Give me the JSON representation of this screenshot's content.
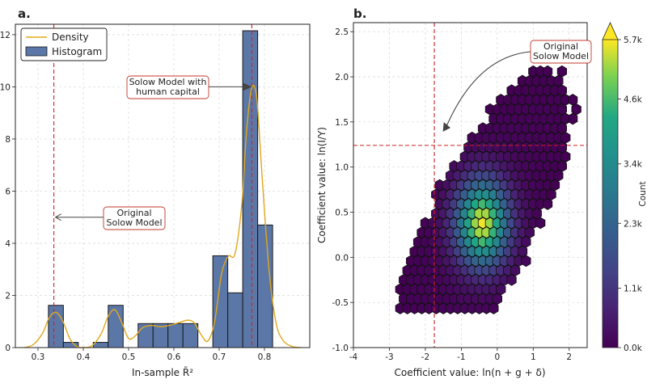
{
  "chart_data": [
    {
      "type": "bar",
      "panel_label": "a.",
      "xlabel": "In-sample R̄²",
      "ylabel": "",
      "xlim": [
        0.25,
        0.9
      ],
      "ylim": [
        0,
        12.4
      ],
      "xticks": [
        "0.3",
        "0.4",
        "0.5",
        "0.6",
        "0.7",
        "0.8"
      ],
      "yticks": [
        "0",
        "2",
        "4",
        "6",
        "8",
        "10",
        "12"
      ],
      "grid": true,
      "legend": {
        "placement": "top-left",
        "entries": [
          "Density",
          "Histogram"
        ]
      },
      "colors": {
        "bar": "#5b77a8",
        "bar_edge": "#1a1a1a",
        "density": "#e0a81d",
        "ref_line": "#cc2222"
      },
      "bins": [
        {
          "x0": 0.323,
          "x1": 0.356,
          "value": 1.62
        },
        {
          "x0": 0.356,
          "x1": 0.389,
          "value": 0.2
        },
        {
          "x0": 0.389,
          "x1": 0.422,
          "value": 0.0
        },
        {
          "x0": 0.422,
          "x1": 0.455,
          "value": 0.2
        },
        {
          "x0": 0.455,
          "x1": 0.488,
          "value": 1.62
        },
        {
          "x0": 0.488,
          "x1": 0.521,
          "value": 0.0
        },
        {
          "x0": 0.521,
          "x1": 0.554,
          "value": 0.92
        },
        {
          "x0": 0.554,
          "x1": 0.587,
          "value": 0.92
        },
        {
          "x0": 0.587,
          "x1": 0.62,
          "value": 0.92
        },
        {
          "x0": 0.62,
          "x1": 0.653,
          "value": 0.92
        },
        {
          "x0": 0.653,
          "x1": 0.686,
          "value": 0.0
        },
        {
          "x0": 0.686,
          "x1": 0.719,
          "value": 3.52
        },
        {
          "x0": 0.719,
          "x1": 0.752,
          "value": 2.1
        },
        {
          "x0": 0.752,
          "x1": 0.785,
          "value": 12.15
        },
        {
          "x0": 0.785,
          "x1": 0.818,
          "value": 4.7
        }
      ],
      "density": {
        "x": [
          0.27,
          0.29,
          0.31,
          0.325,
          0.34,
          0.355,
          0.37,
          0.385,
          0.4,
          0.42,
          0.44,
          0.455,
          0.47,
          0.485,
          0.5,
          0.515,
          0.53,
          0.55,
          0.57,
          0.59,
          0.61,
          0.63,
          0.645,
          0.66,
          0.675,
          0.69,
          0.705,
          0.72,
          0.735,
          0.75,
          0.76,
          0.77,
          0.778,
          0.785,
          0.795,
          0.81,
          0.825,
          0.84,
          0.86,
          0.88
        ],
        "y": [
          0.0,
          0.12,
          0.55,
          1.15,
          1.35,
          1.0,
          0.35,
          0.05,
          0.0,
          0.08,
          0.55,
          1.2,
          1.45,
          0.95,
          0.35,
          0.45,
          0.75,
          0.85,
          0.8,
          0.85,
          0.95,
          1.05,
          0.95,
          0.5,
          0.25,
          1.0,
          2.8,
          3.5,
          3.6,
          5.5,
          8.2,
          9.8,
          10.0,
          9.2,
          6.5,
          3.0,
          1.0,
          0.3,
          0.05,
          0.0
        ]
      },
      "ref_lines": [
        0.335,
        0.772
      ],
      "annotations": [
        {
          "text": [
            "Original",
            "Solow Model"
          ],
          "target": [
            0.335,
            5.0
          ]
        },
        {
          "text": [
            "Solow Model with",
            "human capital"
          ],
          "target": [
            0.772,
            10.0
          ]
        }
      ]
    },
    {
      "type": "heatmap",
      "subtype": "hexbin",
      "panel_label": "b.",
      "xlabel": "Coefficient value: ln(n + g + δ)",
      "ylabel": "Coefficient value: ln(I/Y)",
      "xlim": [
        -4.0,
        2.5
      ],
      "ylim": [
        -1.0,
        2.6
      ],
      "xticks": [
        "-4",
        "-3",
        "-2",
        "-1",
        "0",
        "1",
        "2"
      ],
      "yticks": [
        "-1.0",
        "-0.5",
        "0.0",
        "0.5",
        "1.0",
        "1.5",
        "2.0",
        "2.5"
      ],
      "grid": true,
      "colorbar": {
        "ticks": [
          "0.0k",
          "1.1k",
          "2.3k",
          "3.4k",
          "4.6k",
          "5.7k"
        ],
        "max": 5.7,
        "label": "Count"
      },
      "center": [
        -0.4,
        0.38
      ],
      "ref_lines": {
        "x": -1.75,
        "y": 1.24
      },
      "colors": {
        "ref_line": "#cc2222",
        "hex_edge": "#111111"
      },
      "annotations": [
        {
          "text": [
            "Original",
            "Solow Model"
          ],
          "target": [
            -1.5,
            1.4
          ]
        }
      ]
    }
  ]
}
